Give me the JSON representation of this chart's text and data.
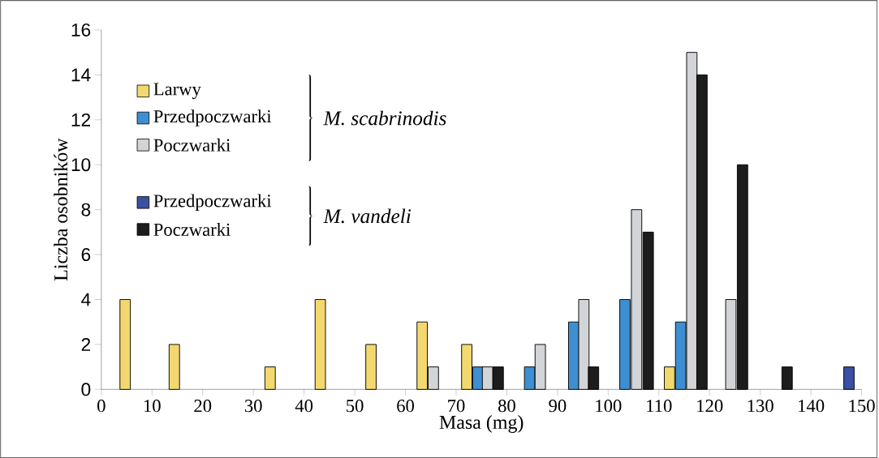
{
  "chart_data": {
    "type": "bar",
    "xlabel": "Masa (mg)",
    "ylabel": "Liczba osobników",
    "xlim": [
      0,
      150
    ],
    "xticks": [
      0,
      10,
      20,
      30,
      40,
      50,
      60,
      70,
      80,
      90,
      100,
      110,
      120,
      130,
      140,
      150
    ],
    "ylim": [
      0,
      16
    ],
    "yticks": [
      0,
      2,
      4,
      6,
      8,
      10,
      12,
      14,
      16
    ],
    "legend": "top left",
    "grid": false,
    "annotations": [
      "*M. scabrinodis*",
      "*M. vandeli*"
    ],
    "series": [
      {
        "name": "Larwy",
        "color": "#f3d86f",
        "x": [
          4.7,
          14.4,
          33.3,
          43.2,
          53.2,
          63.3,
          72.1,
          112.1
        ],
        "values": [
          4,
          2,
          1,
          4,
          2,
          3,
          2,
          1
        ]
      },
      {
        "name": "Przedpoczwarki",
        "color": "#3d8fd1",
        "x": [
          74.3,
          84.5,
          93.2,
          103.3,
          114.3
        ],
        "values": [
          1,
          1,
          3,
          4,
          3
        ]
      },
      {
        "name": "Poczwarki",
        "color": "#d2d4d7",
        "x": [
          65.5,
          76.2,
          86.6,
          95.2,
          105.6,
          116.5,
          124.2
        ],
        "values": [
          1,
          1,
          2,
          4,
          8,
          15,
          4
        ]
      },
      {
        "name": "Przedpoczwarki",
        "color": "#3b4fa3",
        "x": [
          147.5
        ],
        "values": [
          1
        ]
      },
      {
        "name": "Poczwarki",
        "color": "#1c1c1c",
        "x": [
          78.3,
          97.1,
          107.9,
          118.5,
          126.5,
          135.3
        ],
        "values": [
          1,
          1,
          7,
          14,
          10,
          1
        ]
      }
    ]
  }
}
